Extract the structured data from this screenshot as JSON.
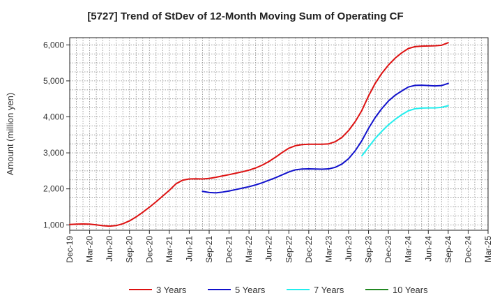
{
  "chart_data": {
    "type": "line",
    "title": "[5727]  Trend of StDev of 12-Month Moving Sum of Operating CF",
    "ylabel": "Amount (million yen)",
    "xlabel": "",
    "ylim": [
      850,
      6200
    ],
    "yticks": [
      1000,
      2000,
      3000,
      4000,
      5000,
      6000
    ],
    "ytick_labels": [
      "1,000",
      "2,000",
      "3,000",
      "4,000",
      "5,000",
      "6,000"
    ],
    "x_start": "Dec-19",
    "x_end": "Mar-25",
    "categories": [
      "Dec-19",
      "Mar-20",
      "Jun-20",
      "Sep-20",
      "Dec-20",
      "Mar-21",
      "Jun-21",
      "Sep-21",
      "Dec-21",
      "Mar-22",
      "Jun-22",
      "Sep-22",
      "Dec-22",
      "Mar-23",
      "Jun-23",
      "Sep-23",
      "Dec-23",
      "Mar-24",
      "Jun-24",
      "Sep-24",
      "Dec-24",
      "Mar-25"
    ],
    "grid": true,
    "legend_position": "bottom",
    "series": [
      {
        "name": "3 Years",
        "color": "#dd1111",
        "points": [
          [
            "Dec-19",
            1010
          ],
          [
            "Jan-20",
            1020
          ],
          [
            "Feb-20",
            1025
          ],
          [
            "Mar-20",
            1020
          ],
          [
            "Apr-20",
            1000
          ],
          [
            "May-20",
            975
          ],
          [
            "Jun-20",
            965
          ],
          [
            "Jul-20",
            980
          ],
          [
            "Aug-20",
            1030
          ],
          [
            "Sep-20",
            1110
          ],
          [
            "Oct-20",
            1220
          ],
          [
            "Nov-20",
            1350
          ],
          [
            "Dec-20",
            1490
          ],
          [
            "Jan-21",
            1640
          ],
          [
            "Feb-21",
            1800
          ],
          [
            "Mar-21",
            1960
          ],
          [
            "Apr-21",
            2140
          ],
          [
            "May-21",
            2240
          ],
          [
            "Jun-21",
            2275
          ],
          [
            "Jul-21",
            2280
          ],
          [
            "Aug-21",
            2275
          ],
          [
            "Sep-21",
            2290
          ],
          [
            "Oct-21",
            2320
          ],
          [
            "Nov-21",
            2360
          ],
          [
            "Dec-21",
            2395
          ],
          [
            "Jan-22",
            2435
          ],
          [
            "Feb-22",
            2475
          ],
          [
            "Mar-22",
            2520
          ],
          [
            "Apr-22",
            2580
          ],
          [
            "May-22",
            2660
          ],
          [
            "Jun-22",
            2760
          ],
          [
            "Jul-22",
            2880
          ],
          [
            "Aug-22",
            3010
          ],
          [
            "Sep-22",
            3130
          ],
          [
            "Oct-22",
            3200
          ],
          [
            "Nov-22",
            3230
          ],
          [
            "Dec-22",
            3240
          ],
          [
            "Jan-23",
            3240
          ],
          [
            "Feb-23",
            3240
          ],
          [
            "Mar-23",
            3250
          ],
          [
            "Apr-23",
            3310
          ],
          [
            "May-23",
            3430
          ],
          [
            "Jun-23",
            3620
          ],
          [
            "Jul-23",
            3870
          ],
          [
            "Aug-23",
            4180
          ],
          [
            "Sep-23",
            4580
          ],
          [
            "Oct-23",
            4930
          ],
          [
            "Nov-23",
            5210
          ],
          [
            "Dec-23",
            5440
          ],
          [
            "Jan-24",
            5630
          ],
          [
            "Feb-24",
            5780
          ],
          [
            "Mar-24",
            5900
          ],
          [
            "Apr-24",
            5950
          ],
          [
            "May-24",
            5965
          ],
          [
            "Jun-24",
            5970
          ],
          [
            "Jul-24",
            5975
          ],
          [
            "Aug-24",
            5990
          ],
          [
            "Sep-24",
            6060
          ]
        ]
      },
      {
        "name": "5 Years",
        "color": "#1111cc",
        "points": [
          [
            "Aug-21",
            1930
          ],
          [
            "Sep-21",
            1900
          ],
          [
            "Oct-21",
            1890
          ],
          [
            "Nov-21",
            1910
          ],
          [
            "Dec-21",
            1940
          ],
          [
            "Jan-22",
            1980
          ],
          [
            "Feb-22",
            2020
          ],
          [
            "Mar-22",
            2060
          ],
          [
            "Apr-22",
            2110
          ],
          [
            "May-22",
            2170
          ],
          [
            "Jun-22",
            2240
          ],
          [
            "Jul-22",
            2310
          ],
          [
            "Aug-22",
            2390
          ],
          [
            "Sep-22",
            2470
          ],
          [
            "Oct-22",
            2530
          ],
          [
            "Nov-22",
            2550
          ],
          [
            "Dec-22",
            2555
          ],
          [
            "Jan-23",
            2550
          ],
          [
            "Feb-23",
            2545
          ],
          [
            "Mar-23",
            2555
          ],
          [
            "Apr-23",
            2600
          ],
          [
            "May-23",
            2690
          ],
          [
            "Jun-23",
            2840
          ],
          [
            "Jul-23",
            3060
          ],
          [
            "Aug-23",
            3340
          ],
          [
            "Sep-23",
            3680
          ],
          [
            "Oct-23",
            3980
          ],
          [
            "Nov-23",
            4230
          ],
          [
            "Dec-23",
            4440
          ],
          [
            "Jan-24",
            4600
          ],
          [
            "Feb-24",
            4720
          ],
          [
            "Mar-24",
            4830
          ],
          [
            "Apr-24",
            4875
          ],
          [
            "May-24",
            4880
          ],
          [
            "Jun-24",
            4870
          ],
          [
            "Jul-24",
            4860
          ],
          [
            "Aug-24",
            4870
          ],
          [
            "Sep-24",
            4930
          ]
        ]
      },
      {
        "name": "7 Years",
        "color": "#22eeee",
        "points": [
          [
            "Aug-23",
            2920
          ],
          [
            "Sep-23",
            3160
          ],
          [
            "Oct-23",
            3400
          ],
          [
            "Nov-23",
            3600
          ],
          [
            "Dec-23",
            3780
          ],
          [
            "Jan-24",
            3930
          ],
          [
            "Feb-24",
            4060
          ],
          [
            "Mar-24",
            4170
          ],
          [
            "Apr-24",
            4225
          ],
          [
            "May-24",
            4245
          ],
          [
            "Jun-24",
            4250
          ],
          [
            "Jul-24",
            4250
          ],
          [
            "Aug-24",
            4265
          ],
          [
            "Sep-24",
            4310
          ]
        ]
      },
      {
        "name": "10 Years",
        "color": "#228822",
        "points": []
      }
    ]
  }
}
